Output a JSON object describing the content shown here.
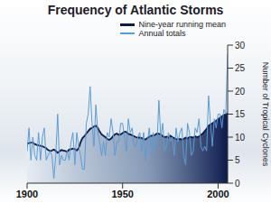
{
  "chart_data": {
    "type": "line",
    "title": "Frequency of Atlantic Storms",
    "x": [
      1900,
      1901,
      1902,
      1903,
      1904,
      1905,
      1906,
      1907,
      1908,
      1909,
      1910,
      1911,
      1912,
      1913,
      1914,
      1915,
      1916,
      1917,
      1918,
      1919,
      1920,
      1921,
      1922,
      1923,
      1924,
      1925,
      1926,
      1927,
      1928,
      1929,
      1930,
      1931,
      1932,
      1933,
      1934,
      1935,
      1936,
      1937,
      1938,
      1939,
      1940,
      1941,
      1942,
      1943,
      1944,
      1945,
      1946,
      1947,
      1948,
      1949,
      1950,
      1951,
      1952,
      1953,
      1954,
      1955,
      1956,
      1957,
      1958,
      1959,
      1960,
      1961,
      1962,
      1963,
      1964,
      1965,
      1966,
      1967,
      1968,
      1969,
      1970,
      1971,
      1972,
      1973,
      1974,
      1975,
      1976,
      1977,
      1978,
      1979,
      1980,
      1981,
      1982,
      1983,
      1984,
      1985,
      1986,
      1987,
      1988,
      1989,
      1990,
      1991,
      1992,
      1993,
      1994,
      1995,
      1996,
      1997,
      1998,
      1999,
      2000,
      2001,
      2002,
      2003,
      2004,
      2005
    ],
    "series": [
      {
        "name": "Nine-year running mean",
        "color": "#0d1b4c",
        "type": "area",
        "values": [
          8.6,
          8.7,
          8.8,
          8.8,
          8.5,
          8.3,
          8.2,
          8.1,
          8.0,
          7.8,
          7.6,
          7.2,
          7.0,
          7.1,
          7.3,
          7.0,
          6.6,
          6.9,
          7.2,
          7.1,
          7.0,
          6.8,
          7.3,
          7.4,
          7.5,
          7.4,
          7.1,
          7.6,
          8.9,
          9.8,
          10.2,
          10.8,
          11.3,
          11.8,
          12.0,
          12.3,
          12.5,
          12.0,
          11.2,
          10.6,
          10.3,
          10.0,
          9.6,
          9.4,
          9.7,
          10.2,
          10.6,
          10.8,
          10.5,
          10.6,
          10.9,
          11.2,
          11.1,
          10.7,
          10.6,
          10.4,
          10.2,
          10.0,
          9.9,
          9.9,
          9.8,
          9.6,
          9.5,
          9.8,
          10.1,
          10.3,
          10.3,
          10.5,
          10.8,
          10.7,
          10.6,
          10.2,
          10.0,
          10.1,
          9.9,
          10.3,
          10.0,
          9.8,
          9.6,
          9.5,
          9.6,
          9.5,
          9.6,
          9.9,
          9.7,
          10.0,
          10.0,
          9.9,
          10.2,
          10.0,
          10.1,
          10.5,
          10.8,
          11.3,
          11.8,
          12.5,
          12.8,
          13.0,
          13.3,
          13.6,
          13.9,
          14.2,
          14.5,
          14.8,
          15.0,
          15.2
        ]
      },
      {
        "name": "Annual totals",
        "color": "#5b9bd5",
        "type": "line",
        "values": [
          7,
          12,
          5,
          10,
          6,
          5,
          11,
          5,
          10,
          12,
          5,
          6,
          7,
          6,
          1,
          6,
          15,
          4,
          6,
          5,
          5,
          7,
          5,
          9,
          11,
          4,
          11,
          8,
          6,
          3,
          3,
          13,
          15,
          21,
          13,
          8,
          17,
          11,
          9,
          6,
          9,
          6,
          11,
          10,
          14,
          11,
          6,
          9,
          9,
          13,
          13,
          10,
          7,
          14,
          11,
          12,
          8,
          8,
          10,
          11,
          7,
          11,
          5,
          9,
          12,
          6,
          11,
          8,
          8,
          18,
          10,
          13,
          7,
          8,
          11,
          9,
          10,
          6,
          12,
          9,
          11,
          12,
          6,
          4,
          13,
          11,
          6,
          7,
          12,
          11,
          14,
          8,
          7,
          8,
          7,
          19,
          13,
          8,
          14,
          12,
          15,
          15,
          12,
          16,
          15,
          28
        ]
      }
    ],
    "xlim": [
      1900,
      2005
    ],
    "xticks": [
      1900,
      1950,
      2000
    ],
    "ylim": [
      0,
      30
    ],
    "yticks": [
      0,
      5,
      10,
      15,
      20,
      25,
      30
    ],
    "y_label": "Number of Tropical Cyclones",
    "legend": "upper right",
    "grid": false
  }
}
